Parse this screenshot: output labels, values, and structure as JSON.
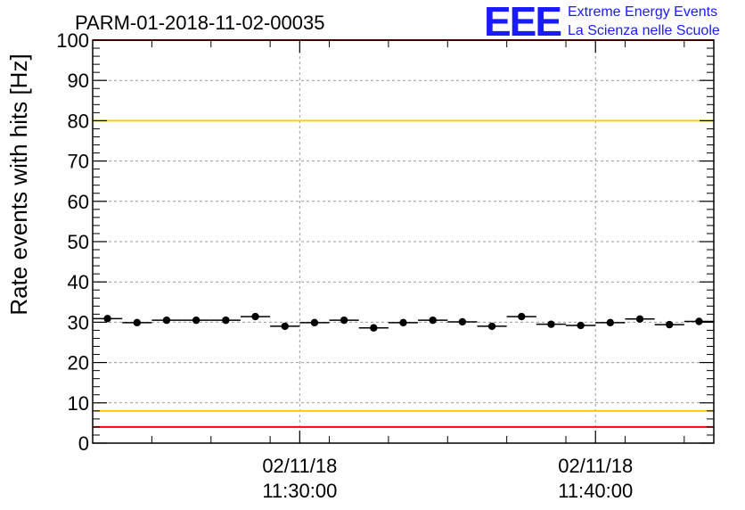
{
  "title": "PARM-01-2018-11-02-00035",
  "logo": {
    "mark": "EEE",
    "line1": "Extreme Energy Events",
    "line2": "La Scienza nelle Scuole",
    "color": "#1a1aff"
  },
  "chart_data": {
    "type": "scatter",
    "title": "PARM-01-2018-11-02-00035",
    "xlabel": "",
    "ylabel": "Rate events with hits [Hz]",
    "ylim": [
      0,
      100
    ],
    "yticks": [
      0,
      10,
      20,
      30,
      40,
      50,
      60,
      70,
      80,
      90,
      100
    ],
    "xlim": [
      "02/11/18 11:23:00",
      "02/11/18 11:44:00"
    ],
    "xticks": [
      {
        "date": "02/11/18",
        "time": "11:30:00"
      },
      {
        "date": "02/11/18",
        "time": "11:40:00"
      }
    ],
    "grid": true,
    "series": [
      {
        "x": [
          "11:23:30",
          "11:24:30",
          "11:25:30",
          "11:26:30",
          "11:27:30",
          "11:28:30",
          "11:29:30",
          "11:30:30",
          "11:31:30",
          "11:32:30",
          "11:33:30",
          "11:34:30",
          "11:35:30",
          "11:36:30",
          "11:37:30",
          "11:38:30",
          "11:39:30",
          "11:40:30",
          "11:41:30",
          "11:42:30",
          "11:43:30"
        ],
        "values": [
          30.9,
          29.9,
          30.5,
          30.5,
          30.5,
          31.4,
          29.0,
          29.9,
          30.5,
          28.6,
          29.9,
          30.5,
          30.1,
          29.0,
          31.4,
          29.5,
          29.2,
          29.9,
          30.8,
          29.4,
          30.2
        ],
        "color": "#000000"
      }
    ],
    "threshold_lines": [
      {
        "value": 80,
        "color": "#ffcc00"
      },
      {
        "value": 8,
        "color": "#ffcc00"
      },
      {
        "value": 4,
        "color": "#ff0000"
      },
      {
        "value": 100,
        "color": "#ff0000"
      }
    ]
  }
}
